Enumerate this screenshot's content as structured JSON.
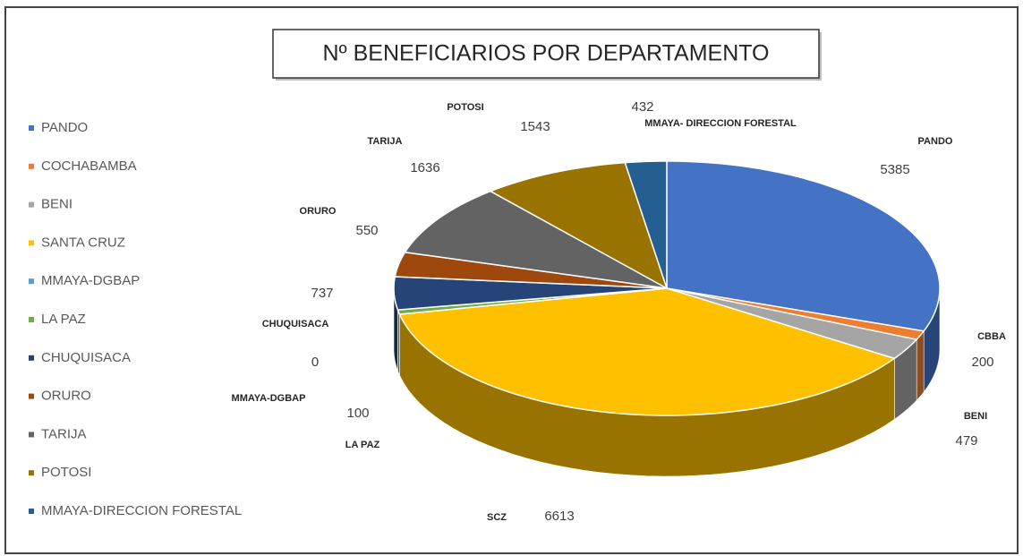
{
  "chart_data": {
    "type": "pie",
    "title": "Nº BENEFICIARIOS POR DEPARTAMENTO",
    "categories": [
      "PANDO",
      "COCHABAMBA",
      "BENI",
      "SANTA CRUZ",
      "MMAYA-DGBAP",
      "LA PAZ",
      "CHUQUISACA",
      "ORURO",
      "TARIJA",
      "POTOSI",
      "MMAYA-DIRECCION FORESTAL"
    ],
    "slice_labels": [
      "PANDO",
      "CBBA",
      "BENI",
      "SCZ",
      "MMAYA-DGBAP",
      "LA PAZ",
      "CHUQUISACA",
      "ORURO",
      "TARIJA",
      "POTOSI",
      "MMAYA- DIRECCION FORESTAL"
    ],
    "values": [
      5385,
      200,
      479,
      6613,
      0,
      100,
      737,
      550,
      1636,
      1543,
      432
    ],
    "colors": [
      "#4472c4",
      "#ed7d31",
      "#a5a5a5",
      "#ffc000",
      "#5b9bd5",
      "#70ad47",
      "#264478",
      "#9e480e",
      "#636363",
      "#997300",
      "#255e91"
    ],
    "legend": "left"
  }
}
